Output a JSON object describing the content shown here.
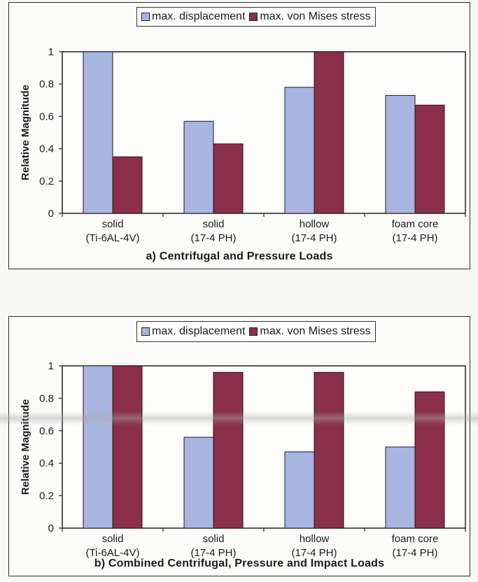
{
  "chart_data": [
    {
      "type": "bar",
      "title": "a) Centrifugal and Pressure Loads",
      "xlabel": "",
      "ylabel": "Relative Magnitude",
      "ylim": [
        0,
        1
      ],
      "yticks": [
        "0",
        "0.2",
        "0.4",
        "0.6",
        "0.8",
        "1"
      ],
      "grid": false,
      "legend_placement": "top-center",
      "categories": [
        [
          "solid",
          "(Ti-6AL-4V)"
        ],
        [
          "solid",
          "(17-4 PH)"
        ],
        [
          "hollow",
          "(17-4 PH)"
        ],
        [
          "foam core",
          "(17-4 PH)"
        ]
      ],
      "series": [
        {
          "name": "max. displacement",
          "color": "#a8b5e0",
          "values": [
            1.0,
            0.57,
            0.78,
            0.73
          ]
        },
        {
          "name": "max. von Mises stress",
          "color": "#8b2f4a",
          "values": [
            0.35,
            0.43,
            1.0,
            0.67
          ]
        }
      ]
    },
    {
      "type": "bar",
      "title": "b) Combined Centrifugal, Pressure and Impact Loads",
      "xlabel": "",
      "ylabel": "Relative Magnitude",
      "ylim": [
        0,
        1
      ],
      "yticks": [
        "0",
        "0.2",
        "0.4",
        "0.6",
        "0.8",
        "1"
      ],
      "grid": false,
      "legend_placement": "top-center",
      "categories": [
        [
          "solid",
          "(Ti-6AL-4V)"
        ],
        [
          "solid",
          "(17-4 PH)"
        ],
        [
          "hollow",
          "(17-4 PH)"
        ],
        [
          "foam core",
          "(17-4 PH)"
        ]
      ],
      "series": [
        {
          "name": "max. displacement",
          "color": "#a8b5e0",
          "values": [
            1.0,
            0.56,
            0.47,
            0.5
          ]
        },
        {
          "name": "max. von Mises stress",
          "color": "#8b2f4a",
          "values": [
            1.0,
            0.96,
            0.96,
            0.84
          ]
        }
      ]
    }
  ]
}
